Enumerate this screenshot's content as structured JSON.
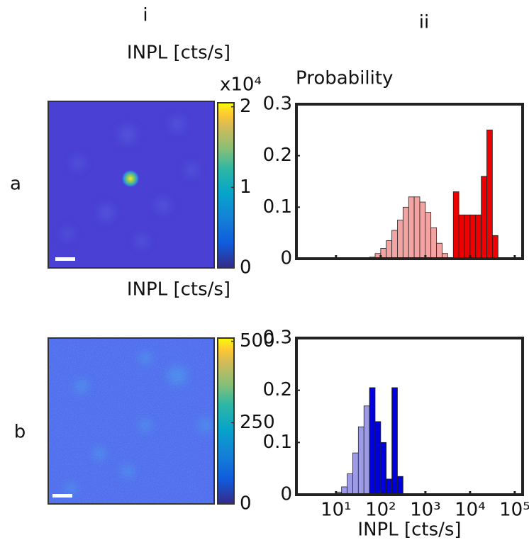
{
  "column_labels": [
    "i",
    "ii"
  ],
  "row_labels": [
    "a",
    "b"
  ],
  "chart_data": [
    {
      "type": "image",
      "title": "INPL [cts/s]",
      "colorbar_label": "x10⁴",
      "clim": [
        0,
        2.05
      ],
      "cticks": [
        0,
        1,
        2
      ]
    },
    {
      "type": "histogram",
      "ylabel": "Probability",
      "log_x": true,
      "xlim": [
        1.3,
        150000
      ],
      "xticks": [
        10,
        100,
        1000,
        10000,
        100000
      ],
      "xtick_labels": false,
      "ylim": [
        0,
        0.3
      ],
      "yticks": [
        0,
        0.1,
        0.2,
        0.3
      ],
      "series": [
        {
          "color": "#f4a3a3",
          "bins": [
            56.2,
            75,
            100,
            133,
            178,
            237,
            316,
            422,
            562,
            750,
            1000,
            1330,
            1780,
            2370,
            3160
          ],
          "values": [
            0.003,
            0.01,
            0.02,
            0.035,
            0.055,
            0.075,
            0.1,
            0.12,
            0.12,
            0.11,
            0.09,
            0.06,
            0.03,
            0.01
          ]
        },
        {
          "color": "#ee0000",
          "bins": [
            4220,
            5620,
            7500,
            10000,
            13300,
            17800,
            23700,
            31600,
            42200
          ],
          "values": [
            0.13,
            0.085,
            0.085,
            0.085,
            0.085,
            0.16,
            0.25,
            0.045
          ]
        }
      ]
    },
    {
      "type": "image",
      "title": "INPL [cts/s]",
      "clim": [
        0,
        510
      ],
      "cticks": [
        0,
        250,
        500
      ]
    },
    {
      "type": "histogram",
      "xlabel": "INPL [cts/s]",
      "log_x": true,
      "xlim": [
        1.3,
        150000
      ],
      "xticks": [
        {
          "value": 10,
          "label": "10¹"
        },
        {
          "value": 100,
          "label": "10²"
        },
        {
          "value": 1000,
          "label": "10³"
        },
        {
          "value": 10000,
          "label": "10⁴"
        },
        {
          "value": 100000,
          "label": "10⁵"
        }
      ],
      "xtick_labels": true,
      "ylim": [
        0,
        0.3
      ],
      "yticks": [
        0,
        0.1,
        0.2,
        0.3
      ],
      "series": [
        {
          "color": "#9d9be6",
          "bins": [
            10,
            13.3,
            17.8,
            23.7,
            31.6,
            42.2,
            56.2
          ],
          "values": [
            0.005,
            0.015,
            0.04,
            0.08,
            0.13,
            0.17
          ]
        },
        {
          "color": "#0000dd",
          "bins": [
            56.2,
            75,
            100,
            133,
            178,
            237,
            316
          ],
          "values": [
            0.205,
            0.14,
            0.1,
            0.03,
            0.205,
            0.035
          ]
        }
      ]
    }
  ]
}
